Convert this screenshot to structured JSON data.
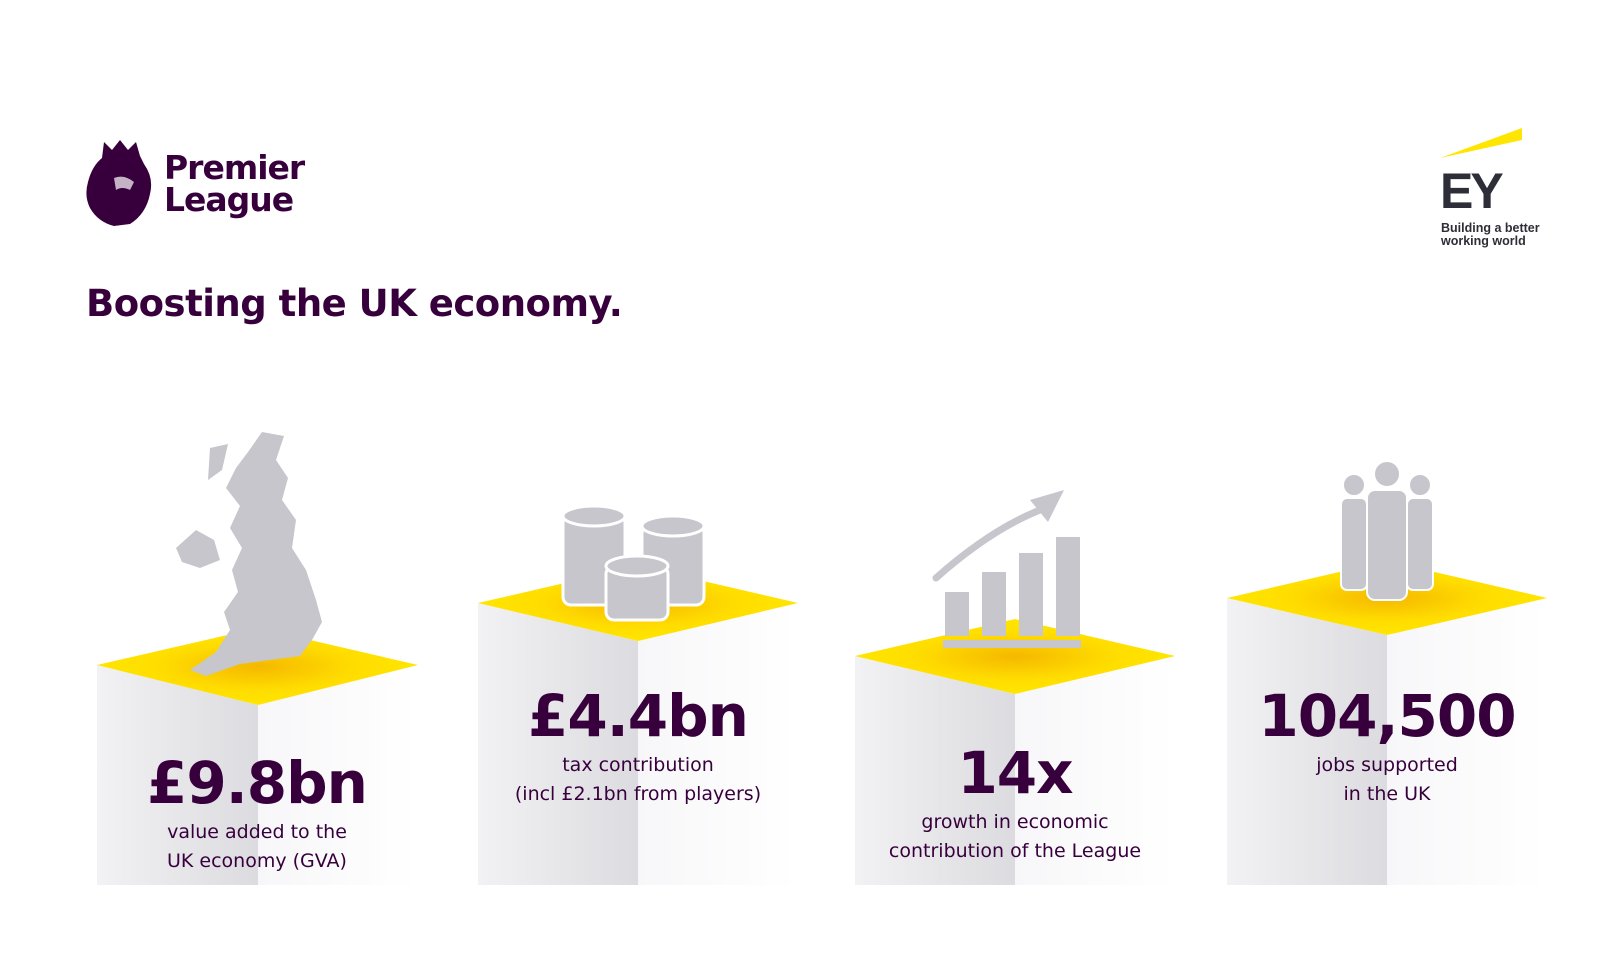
{
  "header": {
    "brand_line1": "Premier",
    "brand_line2": "League",
    "title": "Boosting the UK economy.",
    "partner_logo": "EY",
    "partner_tagline_line1": "Building a better",
    "partner_tagline_line2": "working world"
  },
  "colors": {
    "purple": "#37003c",
    "yellow": "#ffe600",
    "icon_grey": "#c6c6cc",
    "ey_dark": "#2e2e38"
  },
  "stats": [
    {
      "icon": "uk-map-icon",
      "value": "£9.8bn",
      "desc_line1": "value added to the",
      "desc_line2": "UK economy (GVA)"
    },
    {
      "icon": "coins-icon",
      "value": "£4.4bn",
      "desc_line1": "tax contribution",
      "desc_line2": "(incl £2.1bn from players)"
    },
    {
      "icon": "growth-chart-icon",
      "value": "14x",
      "desc_line1": "growth in economic",
      "desc_line2": "contribution of the League"
    },
    {
      "icon": "people-icon",
      "value": "104,500",
      "desc_line1": "jobs supported",
      "desc_line2": "in the UK"
    }
  ]
}
